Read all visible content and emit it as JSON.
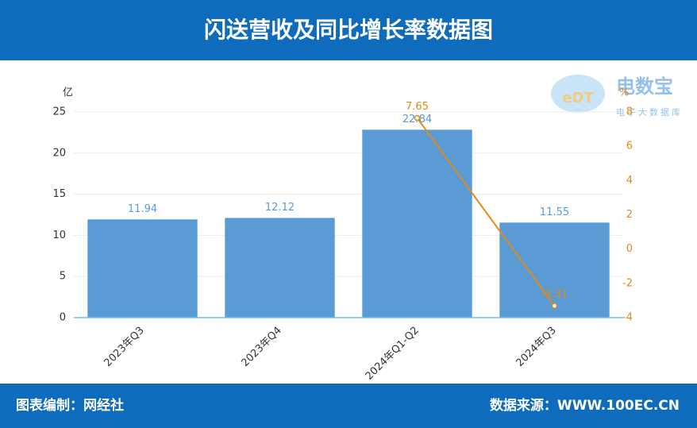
{
  "header": {
    "title": "闪送营收及同比增长率数据图"
  },
  "logo": {
    "mark": "eDT",
    "name": "电数宝",
    "subtitle": "电子大数据库"
  },
  "footer": {
    "left": "图表编制：网经社",
    "right": "数据来源：WWW.100EC.CN"
  },
  "chart_data": {
    "type": "bar",
    "categories": [
      "2023年Q3",
      "2023年Q4",
      "2024年Q1-Q2",
      "2024年Q3"
    ],
    "series": [
      {
        "type": "bar",
        "color": "#5b9bd5",
        "values": [
          11.94,
          12.12,
          22.84,
          11.55
        ]
      },
      {
        "type": "line",
        "axis": "y2",
        "color": "#e08a1a",
        "values": [
          null,
          null,
          7.65,
          -3.31
        ]
      }
    ],
    "ylabel": "亿",
    "y2label": "%",
    "ylim": [
      0,
      25
    ],
    "yticks": [
      0,
      5,
      10,
      15,
      20,
      25
    ],
    "y2lim": [
      -4,
      8
    ],
    "y2ticks": [
      -4,
      -2,
      0,
      2,
      4,
      6,
      8
    ],
    "grid": true
  }
}
